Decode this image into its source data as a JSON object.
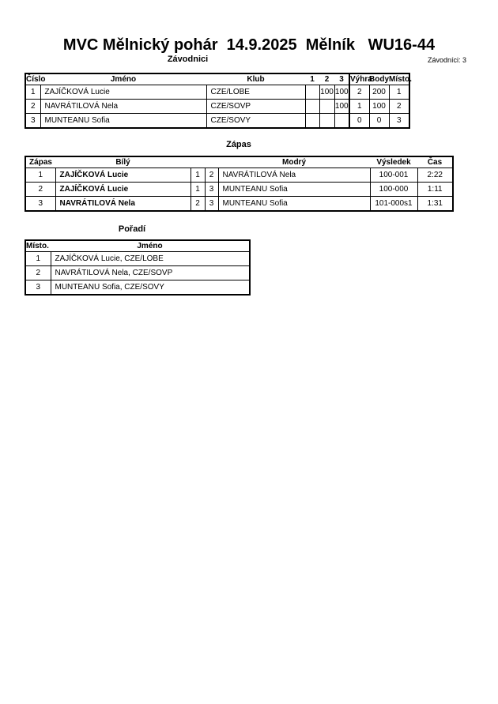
{
  "title": "MVC Mělnický pohár  14.9.2025  Mělník   WU16-44",
  "competitors": {
    "heading": "Závodnici",
    "count_label": "Závodníci: 3",
    "columns": [
      "Číslo",
      "Jméno",
      "Klub",
      "1",
      "2",
      "3",
      "Výhra",
      "Body",
      "Místo."
    ],
    "rows": [
      [
        "1",
        "ZAJÍČKOVÁ Lucie",
        "CZE/LOBE",
        "",
        "100",
        "100",
        "2",
        "200",
        "1"
      ],
      [
        "2",
        "NAVRÁTILOVÁ Nela",
        "CZE/SOVP",
        "",
        "",
        "100",
        "1",
        "100",
        "2"
      ],
      [
        "3",
        "MUNTEANU Sofia",
        "CZE/SOVY",
        "",
        "",
        "",
        "0",
        "0",
        "3"
      ]
    ]
  },
  "matches": {
    "heading": "Zápas",
    "columns": [
      "Zápas",
      "Bílý",
      "Modrý",
      "Výsledek",
      "Čas"
    ],
    "rows": [
      [
        "1",
        "ZAJÍČKOVÁ Lucie",
        "1",
        "2",
        "NAVRÁTILOVÁ Nela",
        "100-001",
        "2:22"
      ],
      [
        "2",
        "ZAJÍČKOVÁ Lucie",
        "1",
        "3",
        "MUNTEANU Sofia",
        "100-000",
        "1:11"
      ],
      [
        "3",
        "NAVRÁTILOVÁ Nela",
        "2",
        "3",
        "MUNTEANU Sofia",
        "101-000s1",
        "1:31"
      ]
    ]
  },
  "ranking": {
    "heading": "Pořadí",
    "columns": [
      "Místo.",
      "Jméno"
    ],
    "rows": [
      [
        "1",
        "ZAJÍČKOVÁ Lucie, CZE/LOBE"
      ],
      [
        "2",
        "NAVRÁTILOVÁ Nela, CZE/SOVP"
      ],
      [
        "3",
        "MUNTEANU Sofia, CZE/SOVY"
      ]
    ]
  }
}
